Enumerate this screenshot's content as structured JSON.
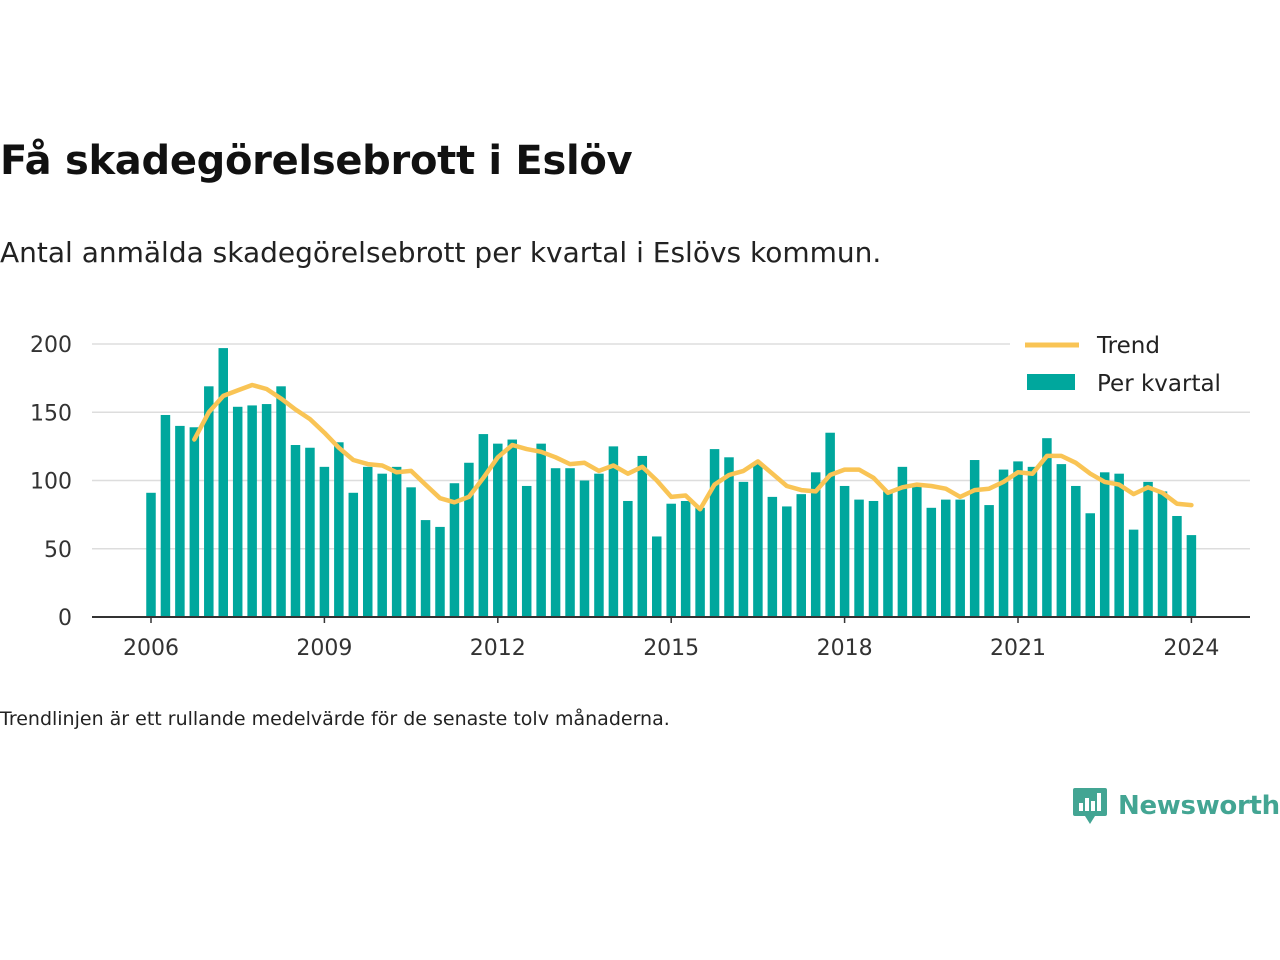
{
  "title": "Få skadegörelsebrott i Eslöv",
  "subtitle": "Antal anmälda skadegörelsebrott per kvartal i Eslövs kommun.",
  "footnote": "Trendlinjen är ett rullande medelvärde för de senaste tolv månaderna.",
  "brand": "Newsworthy",
  "colors": {
    "bars": "#00a79d",
    "trend": "#f9c455",
    "brand": "#43a593"
  },
  "chart_data": {
    "type": "bar",
    "grid": true,
    "legend": "top-right",
    "ylim": [
      0,
      200
    ],
    "yticks": [
      0,
      50,
      100,
      150,
      200
    ],
    "xticks": [
      "2006",
      "2009",
      "2012",
      "2015",
      "2018",
      "2021",
      "2024"
    ],
    "series": [
      {
        "name": "Per kvartal",
        "kind": "bar",
        "start": "2006 Q1",
        "values": [
          91,
          148,
          140,
          139,
          169,
          197,
          154,
          155,
          156,
          169,
          126,
          124,
          110,
          128,
          91,
          110,
          105,
          110,
          95,
          71,
          66,
          98,
          113,
          134,
          127,
          130,
          96,
          127,
          109,
          109,
          100,
          105,
          125,
          85,
          118,
          59,
          83,
          85,
          80,
          123,
          117,
          99,
          113,
          88,
          81,
          90,
          106,
          135,
          96,
          86,
          85,
          92,
          110,
          96,
          80,
          86,
          86,
          115,
          82,
          108,
          114,
          110,
          131,
          112,
          96,
          76,
          106,
          105,
          64,
          99,
          92,
          74,
          60
        ]
      },
      {
        "name": "Trend",
        "kind": "line",
        "start": "2006 Q4",
        "values": [
          130,
          150,
          162,
          166,
          170,
          167,
          160,
          152,
          145,
          135,
          124,
          115,
          112,
          111,
          106,
          107,
          97,
          87,
          84,
          88,
          102,
          117,
          126,
          123,
          121,
          117,
          112,
          113,
          107,
          111,
          105,
          110,
          100,
          88,
          89,
          79,
          97,
          104,
          107,
          114,
          105,
          96,
          93,
          92,
          104,
          108,
          108,
          102,
          91,
          95,
          97,
          96,
          94,
          88,
          93,
          94,
          99,
          106,
          105,
          118,
          118,
          113,
          105,
          99,
          97,
          90,
          95,
          91,
          83,
          82
        ]
      }
    ]
  }
}
